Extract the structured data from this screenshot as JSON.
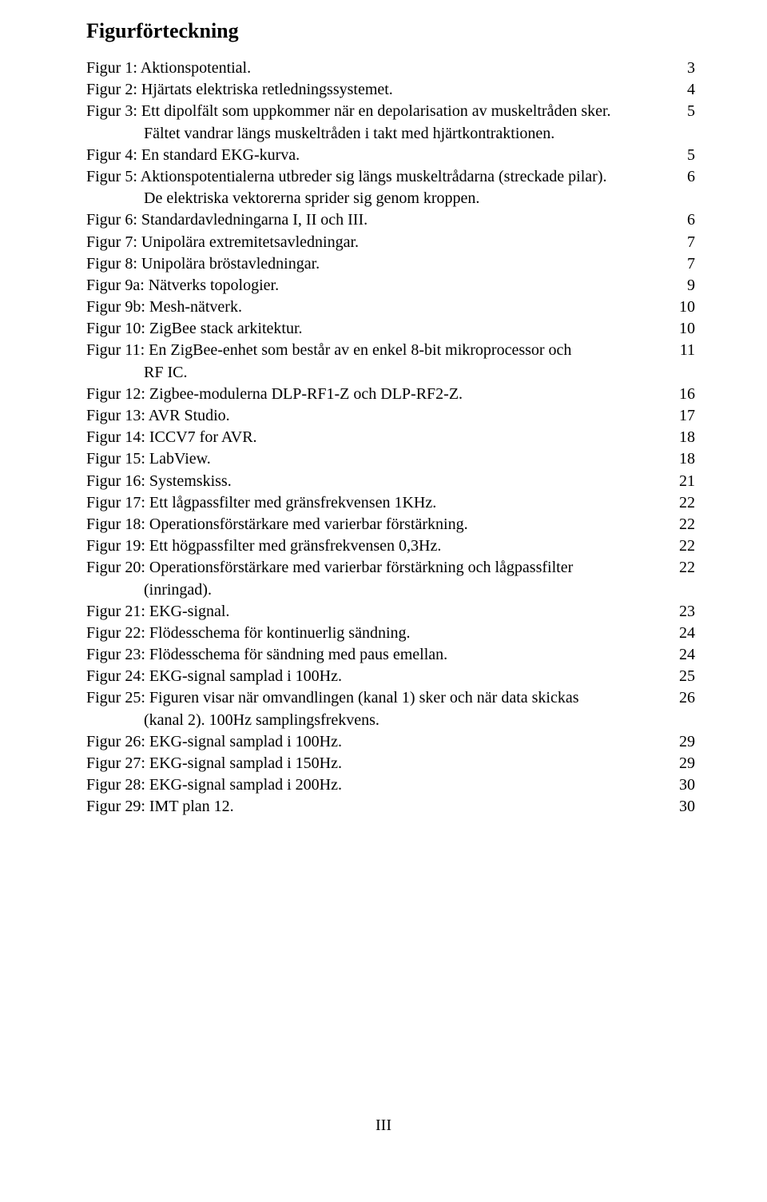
{
  "title": "Figurförteckning",
  "footer": "III",
  "entries": [
    {
      "label": "Figur 1: Aktionspotential.",
      "page": "3"
    },
    {
      "label": "Figur 2: Hjärtats elektriska retledningssystemet.",
      "page": "4"
    },
    {
      "label": "Figur 3: Ett dipolfält som uppkommer när en depolarisation av muskeltråden sker.",
      "cont": "Fältet vandrar längs muskeltråden i takt med hjärtkontraktionen.",
      "page": "5"
    },
    {
      "label": "Figur 4: En standard EKG-kurva.",
      "page": "5"
    },
    {
      "label": "Figur 5: Aktionspotentialerna utbreder sig längs muskeltrådarna (streckade pilar).",
      "cont": "De elektriska vektorerna sprider sig genom kroppen.",
      "page": "6"
    },
    {
      "label": "Figur 6: Standardavledningarna I, II och III.",
      "page": "6"
    },
    {
      "label": "Figur 7: Unipolära extremitetsavledningar.",
      "page": "7"
    },
    {
      "label": "Figur 8: Unipolära bröstavledningar.",
      "page": "7"
    },
    {
      "label": "Figur 9a: Nätverks topologier.",
      "page": "9"
    },
    {
      "label": "Figur 9b: Mesh-nätverk.",
      "page": "10"
    },
    {
      "label": "Figur 10: ZigBee stack arkitektur.",
      "page": "10"
    },
    {
      "label": "Figur 11: En ZigBee-enhet som består av en enkel 8-bit mikroprocessor och",
      "cont": "RF IC.",
      "page": "11"
    },
    {
      "label": "Figur 12: Zigbee-modulerna DLP-RF1-Z och DLP-RF2-Z.",
      "page": "16"
    },
    {
      "label": "Figur 13: AVR Studio.",
      "page": "17"
    },
    {
      "label": "Figur 14: ICCV7 for AVR.",
      "page": "18"
    },
    {
      "label": "Figur 15: LabView.",
      "page": "18"
    },
    {
      "label": "Figur 16: Systemskiss.",
      "page": "21"
    },
    {
      "label": "Figur 17: Ett lågpassfilter med gränsfrekvensen 1KHz.",
      "page": "22"
    },
    {
      "label": "Figur 18: Operationsförstärkare med varierbar förstärkning.",
      "page": "22"
    },
    {
      "label": "Figur 19: Ett högpassfilter med gränsfrekvensen 0,3Hz.",
      "page": "22"
    },
    {
      "label": "Figur 20: Operationsförstärkare med varierbar förstärkning och lågpassfilter",
      "cont": "(inringad).",
      "page": "22"
    },
    {
      "label": "Figur 21: EKG-signal.",
      "page": "23"
    },
    {
      "label": "Figur 22: Flödesschema för kontinuerlig sändning.",
      "page": "24"
    },
    {
      "label": "Figur 23: Flödesschema för sändning med paus emellan.",
      "page": "24"
    },
    {
      "label": "Figur 24: EKG-signal samplad i 100Hz.",
      "page": "25"
    },
    {
      "label": "Figur 25: Figuren visar när omvandlingen (kanal 1) sker och när data skickas",
      "cont": "(kanal  2). 100Hz samplingsfrekvens.",
      "page": "26"
    },
    {
      "label": "Figur 26: EKG-signal samplad i 100Hz.",
      "page": "29"
    },
    {
      "label": "Figur 27: EKG-signal samplad i 150Hz.",
      "page": "29"
    },
    {
      "label": "Figur 28: EKG-signal samplad i 200Hz.",
      "page": "30"
    },
    {
      "label": "Figur 29: IMT plan 12.",
      "page": "30"
    }
  ]
}
